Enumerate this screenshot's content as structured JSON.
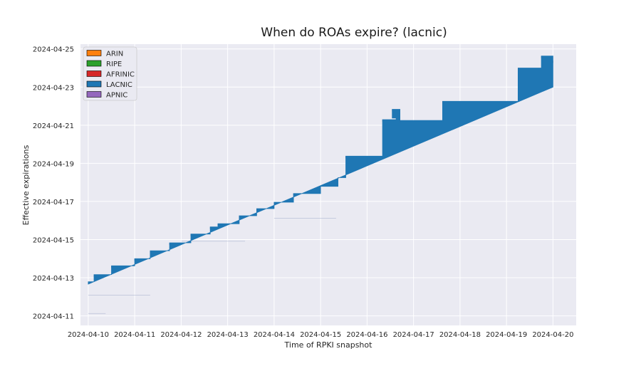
{
  "chart_data": {
    "type": "area",
    "title": "When do ROAs expire? (lacnic)",
    "xlabel": "Time of RPKI snapshot",
    "ylabel": "Effective expirations",
    "x_ticks": [
      "2024-04-10",
      "2024-04-11",
      "2024-04-12",
      "2024-04-13",
      "2024-04-14",
      "2024-04-15",
      "2024-04-16",
      "2024-04-17",
      "2024-04-18",
      "2024-04-19",
      "2024-04-20"
    ],
    "y_ticks": [
      "2024-04-11",
      "2024-04-13",
      "2024-04-15",
      "2024-04-17",
      "2024-04-19",
      "2024-04-21",
      "2024-04-23",
      "2024-04-25"
    ],
    "xlim": [
      "2024-04-09 20:00",
      "2024-04-20 12:00"
    ],
    "ylim": [
      "2024-04-10 12:00",
      "2024-04-25 06:00"
    ],
    "grid": true,
    "legend": {
      "placement": "top-left",
      "entries": [
        {
          "name": "ARIN",
          "color": "#ff7f0e"
        },
        {
          "name": "RIPE",
          "color": "#2ca02c"
        },
        {
          "name": "AFRINIC",
          "color": "#d62728"
        },
        {
          "name": "LACNIC",
          "color": "#1f77b4"
        },
        {
          "name": "APNIC",
          "color": "#9467bd"
        }
      ]
    },
    "series": [
      {
        "name": "LACNIC",
        "color": "#1f77b4",
        "lower_bound": [
          [
            "2024-04-10 00:00",
            "2024-04-12 16:00"
          ],
          [
            "2024-04-20 00:00",
            "2024-04-23 00:00"
          ]
        ],
        "upper_steps": [
          [
            "2024-04-10 00:00",
            "2024-04-12 19:00"
          ],
          [
            "2024-04-10 03:00",
            "2024-04-13 04:00"
          ],
          [
            "2024-04-10 12:00",
            "2024-04-13 15:00"
          ],
          [
            "2024-04-11 00:00",
            "2024-04-14 00:00"
          ],
          [
            "2024-04-11 08:00",
            "2024-04-14 10:00"
          ],
          [
            "2024-04-11 18:00",
            "2024-04-14 20:00"
          ],
          [
            "2024-04-12 05:00",
            "2024-04-15 07:00"
          ],
          [
            "2024-04-12 15:00",
            "2024-04-15 16:00"
          ],
          [
            "2024-04-12 19:00",
            "2024-04-15 20:00"
          ],
          [
            "2024-04-13 06:00",
            "2024-04-16 06:00"
          ],
          [
            "2024-04-13 15:00",
            "2024-04-16 15:00"
          ],
          [
            "2024-04-14 00:00",
            "2024-04-16 23:00"
          ],
          [
            "2024-04-14 10:00",
            "2024-04-17 10:00"
          ],
          [
            "2024-04-15 00:00",
            "2024-04-17 19:00"
          ],
          [
            "2024-04-15 09:00",
            "2024-04-18 06:00"
          ],
          [
            "2024-04-15 13:00",
            "2024-04-19 09:00"
          ],
          [
            "2024-04-16 08:00",
            "2024-04-21 07:00"
          ],
          [
            "2024-04-16 15:00",
            "2024-04-21 09:00"
          ],
          [
            "2024-04-16 13:00",
            "2024-04-21 20:00"
          ],
          [
            "2024-04-16 17:00",
            "2024-04-21 06:00"
          ],
          [
            "2024-04-17 15:00",
            "2024-04-22 06:00"
          ],
          [
            "2024-04-19 06:00",
            "2024-04-24 00:00"
          ],
          [
            "2024-04-19 18:00",
            "2024-04-24 15:00"
          ],
          [
            "2024-04-20 00:00",
            "2024-04-24 09:00"
          ]
        ],
        "faint_lines": [
          {
            "x0": "2024-04-10 00:00",
            "x1": "2024-04-10 09:00",
            "y": "2024-04-11 03:00"
          },
          {
            "x0": "2024-04-10 00:00",
            "x1": "2024-04-11 08:00",
            "y": "2024-04-12 02:00"
          },
          {
            "x0": "2024-04-12 00:00",
            "x1": "2024-04-13 09:00",
            "y": "2024-04-14 22:00"
          },
          {
            "x0": "2024-04-14 00:00",
            "x1": "2024-04-15 08:00",
            "y": "2024-04-16 03:00"
          }
        ]
      }
    ]
  }
}
